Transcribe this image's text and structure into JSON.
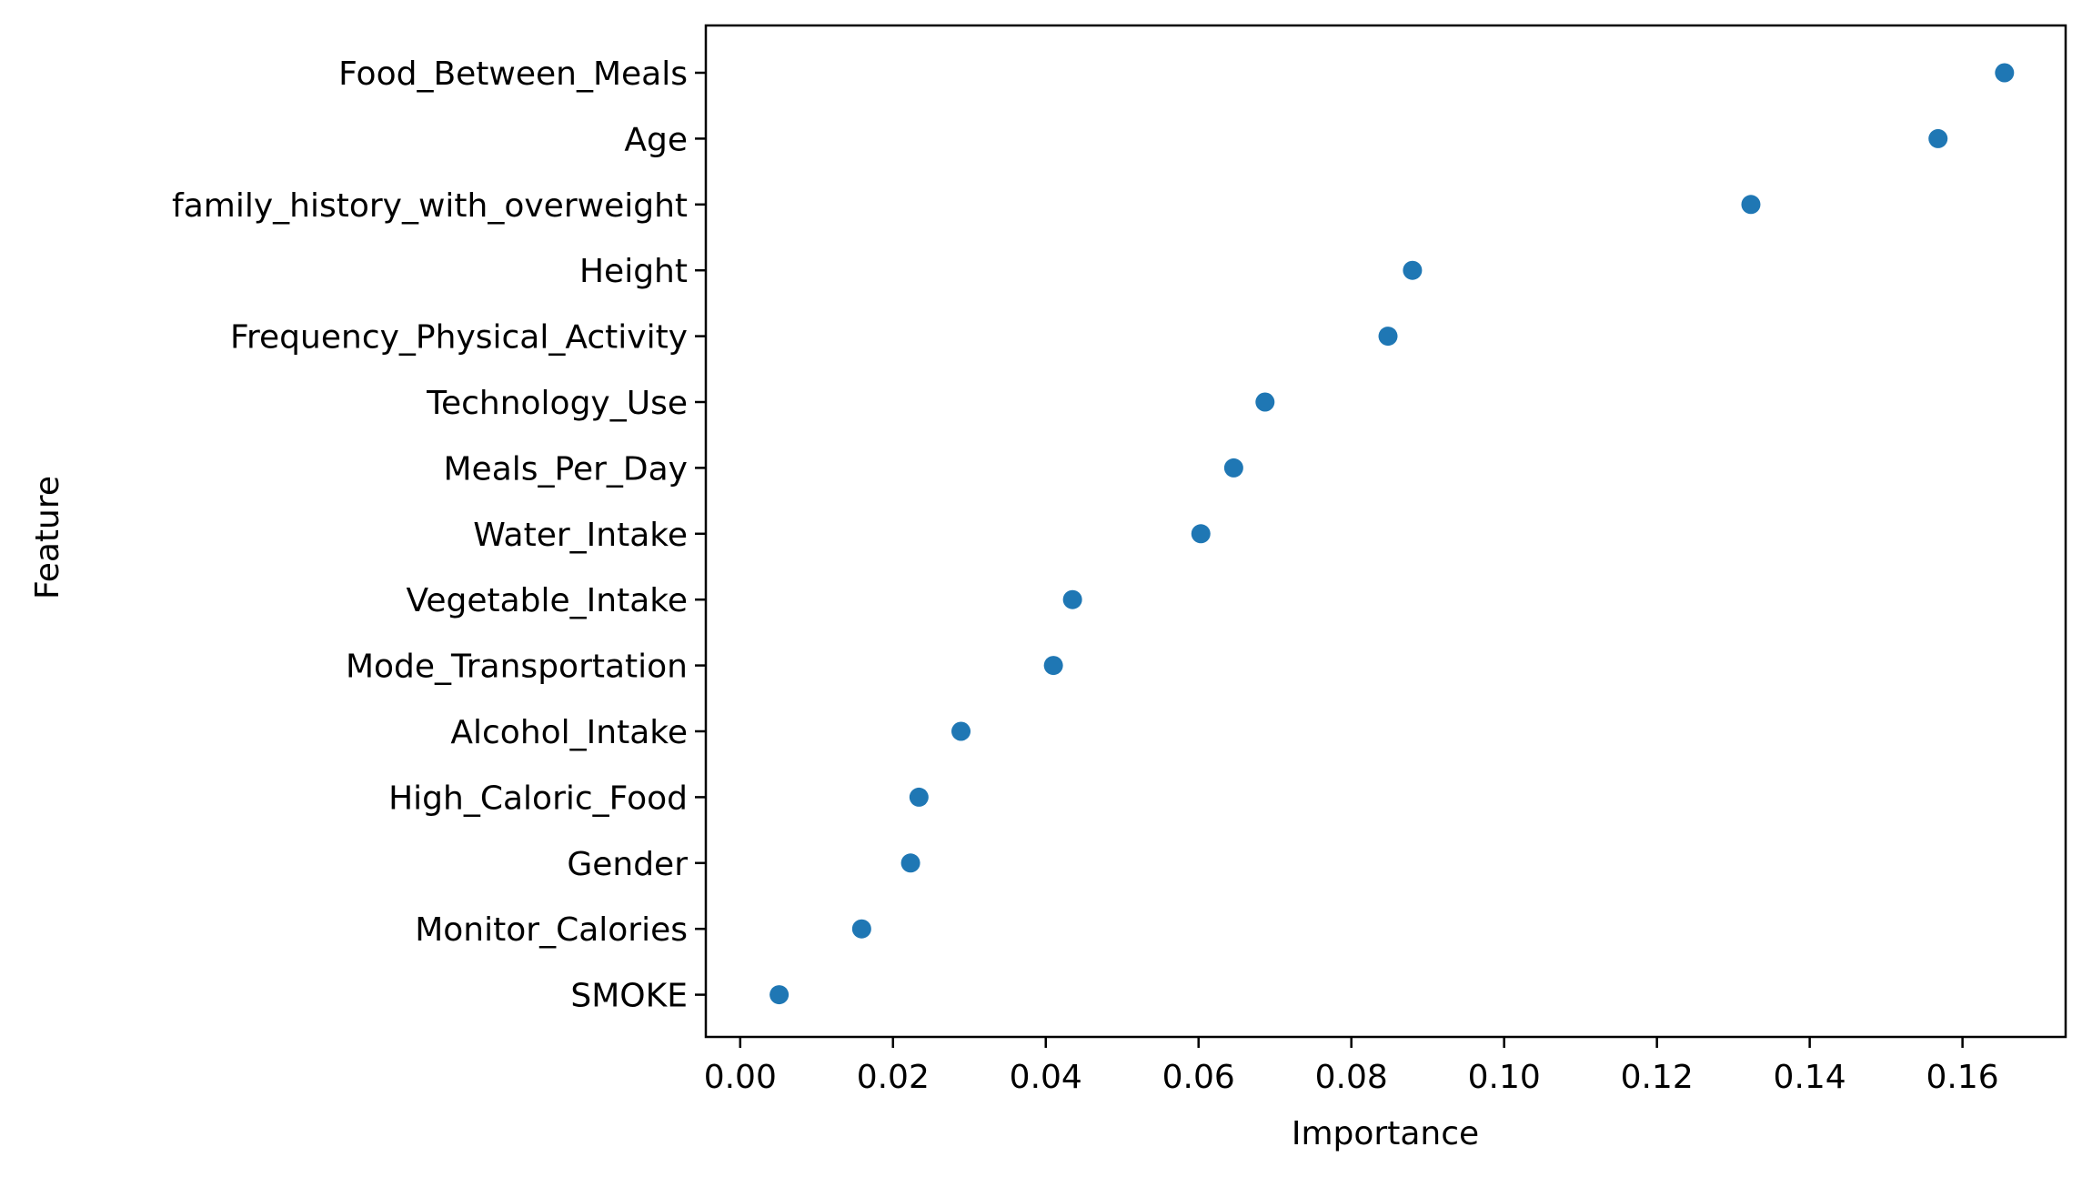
{
  "chart_data": {
    "type": "scatter",
    "title": "",
    "xlabel": "Importance",
    "ylabel": "Feature",
    "xlim": [
      -0.0045,
      0.1735
    ],
    "xticks": [
      0.0,
      0.02,
      0.04,
      0.06,
      0.08,
      0.1,
      0.12,
      0.14,
      0.16
    ],
    "xtick_labels": [
      "0.00",
      "0.02",
      "0.04",
      "0.06",
      "0.08",
      "0.10",
      "0.12",
      "0.14",
      "0.16"
    ],
    "grid": false,
    "legend": "none",
    "marker_color": "#1f77b4",
    "points": [
      {
        "feature": "Food_Between_Meals",
        "importance": 0.1655
      },
      {
        "feature": "Age",
        "importance": 0.1568
      },
      {
        "feature": "family_history_with_overweight",
        "importance": 0.1323
      },
      {
        "feature": "Height",
        "importance": 0.088
      },
      {
        "feature": "Frequency_Physical_Activity",
        "importance": 0.0848
      },
      {
        "feature": "Technology_Use",
        "importance": 0.0687
      },
      {
        "feature": "Meals_Per_Day",
        "importance": 0.0646
      },
      {
        "feature": "Water_Intake",
        "importance": 0.0603
      },
      {
        "feature": "Vegetable_Intake",
        "importance": 0.0435
      },
      {
        "feature": "Mode_Transportation",
        "importance": 0.041
      },
      {
        "feature": "Alcohol_Intake",
        "importance": 0.0289
      },
      {
        "feature": "High_Caloric_Food",
        "importance": 0.0234
      },
      {
        "feature": "Gender",
        "importance": 0.0223
      },
      {
        "feature": "Monitor_Calories",
        "importance": 0.0159
      },
      {
        "feature": "SMOKE",
        "importance": 0.0051
      }
    ]
  }
}
